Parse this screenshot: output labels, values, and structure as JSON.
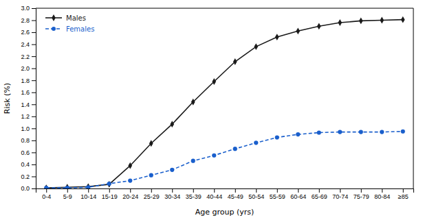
{
  "chart_data": {
    "type": "line",
    "categories": [
      "0-4",
      "5-9",
      "10-14",
      "15-19",
      "20-24",
      "25-29",
      "30-34",
      "35-39",
      "40-44",
      "45-49",
      "50-54",
      "55-59",
      "60-64",
      "65-69",
      "70-74",
      "75-79",
      "80-84",
      "≥85"
    ],
    "series": [
      {
        "name": "Males",
        "color": "#1a1a1a",
        "marker": "diamond",
        "line_style": "solid",
        "values": [
          0.01,
          0.02,
          0.03,
          0.07,
          0.38,
          0.75,
          1.07,
          1.44,
          1.78,
          2.11,
          2.36,
          2.52,
          2.62,
          2.7,
          2.76,
          2.79,
          2.8,
          2.81
        ]
      },
      {
        "name": "Females",
        "color": "#1a5fcc",
        "marker": "circle",
        "line_style": "dashed",
        "values": [
          0.01,
          0.01,
          0.02,
          0.08,
          0.13,
          0.22,
          0.31,
          0.46,
          0.55,
          0.66,
          0.76,
          0.85,
          0.9,
          0.93,
          0.94,
          0.94,
          0.94,
          0.95
        ]
      }
    ],
    "xlabel": "Age group (yrs)",
    "ylabel": "Risk (%)",
    "ylim": [
      0,
      3.0
    ],
    "yticks": [
      {
        "value": 0.0,
        "label": "0.0"
      },
      0.2,
      0.4,
      0.6,
      0.8,
      {
        "value": 1.0,
        "label": "1.0"
      },
      1.2,
      1.4,
      1.6,
      1.8,
      {
        "value": 2.0,
        "label": "2.0"
      },
      2.2,
      2.4,
      2.6,
      2.8,
      {
        "value": 3.0,
        "label": "3.0"
      }
    ],
    "legend": "upper left",
    "grid": false
  }
}
